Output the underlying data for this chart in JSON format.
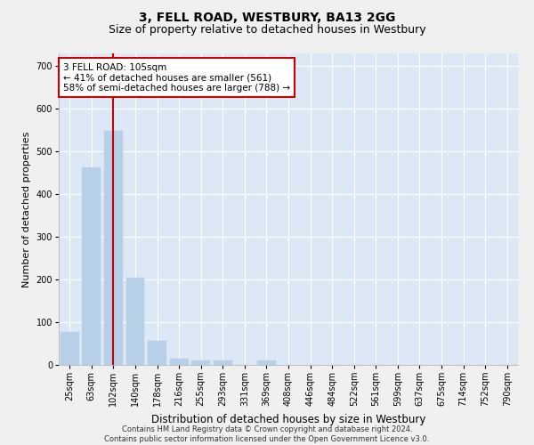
{
  "title": "3, FELL ROAD, WESTBURY, BA13 2GG",
  "subtitle": "Size of property relative to detached houses in Westbury",
  "xlabel": "Distribution of detached houses by size in Westbury",
  "ylabel": "Number of detached properties",
  "footer_line1": "Contains HM Land Registry data © Crown copyright and database right 2024.",
  "footer_line2": "Contains public sector information licensed under the Open Government Licence v3.0.",
  "categories": [
    "25sqm",
    "63sqm",
    "102sqm",
    "140sqm",
    "178sqm",
    "216sqm",
    "255sqm",
    "293sqm",
    "331sqm",
    "369sqm",
    "408sqm",
    "446sqm",
    "484sqm",
    "522sqm",
    "561sqm",
    "599sqm",
    "637sqm",
    "675sqm",
    "714sqm",
    "752sqm",
    "790sqm"
  ],
  "values": [
    78,
    462,
    549,
    204,
    57,
    15,
    10,
    10,
    0,
    10,
    0,
    0,
    0,
    0,
    0,
    0,
    0,
    0,
    0,
    0,
    0
  ],
  "bar_color": "#b8cfe8",
  "bar_edge_color": "#b8cfe8",
  "vline_x": 2,
  "vline_color": "#cc0000",
  "annotation_text": "3 FELL ROAD: 105sqm\n← 41% of detached houses are smaller (561)\n58% of semi-detached houses are larger (788) →",
  "annotation_box_color": "#ffffff",
  "annotation_box_edge_color": "#cc0000",
  "annotation_fontsize": 7.5,
  "ylim": [
    0,
    730
  ],
  "yticks": [
    0,
    100,
    200,
    300,
    400,
    500,
    600,
    700
  ],
  "background_color": "#dce8f5",
  "grid_color": "#ffffff",
  "title_fontsize": 10,
  "subtitle_fontsize": 9,
  "xlabel_fontsize": 8.5,
  "ylabel_fontsize": 8,
  "tick_fontsize": 7,
  "footer_fontsize": 6
}
